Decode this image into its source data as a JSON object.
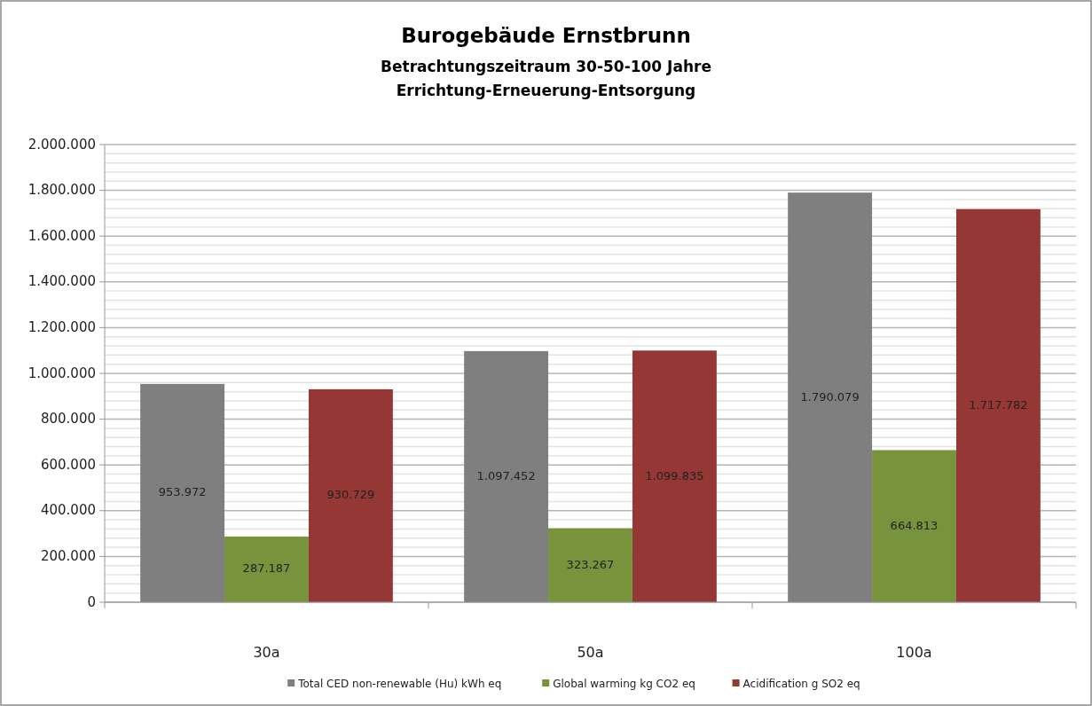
{
  "chart_data": {
    "type": "bar",
    "title": "Burogebäude Ernstbrunn",
    "subtitle": "Betrachtungszeitraum 30-50-100 Jahre\nErrichtung-Erneuerung-Entsorgung",
    "categories": [
      "30a",
      "50a",
      "100a"
    ],
    "series": [
      {
        "name": "Total CED non-renewable (Hu) kWh eq",
        "color": "#7f7f7f",
        "values": [
          953972,
          1097452,
          1790079
        ],
        "value_labels": [
          "953.972",
          "1.097.452",
          "1.790.079"
        ]
      },
      {
        "name": "Global warming kg CO2 eq",
        "color": "#77933c",
        "values": [
          287187,
          323267,
          664813
        ],
        "value_labels": [
          "287.187",
          "323.267",
          "664.813"
        ]
      },
      {
        "name": "Acidification g SO2 eq",
        "color": "#953735",
        "values": [
          930729,
          1099835,
          1717782
        ],
        "value_labels": [
          "930.729",
          "1.099.835",
          "1.717.782"
        ]
      }
    ],
    "ylim": [
      0,
      2000000
    ],
    "yticks": [
      {
        "value": 0,
        "label": "0"
      },
      {
        "value": 40000,
        "label": null
      },
      {
        "value": 80000,
        "label": null
      },
      {
        "value": 120000,
        "label": null
      },
      {
        "value": 160000,
        "label": null
      },
      {
        "value": 200000,
        "label": "200.000"
      },
      {
        "value": 240000,
        "label": null
      },
      {
        "value": 280000,
        "label": null
      },
      {
        "value": 320000,
        "label": null
      },
      {
        "value": 360000,
        "label": null
      },
      {
        "value": 400000,
        "label": "400.000"
      },
      {
        "value": 440000,
        "label": null
      },
      {
        "value": 480000,
        "label": null
      },
      {
        "value": 520000,
        "label": null
      },
      {
        "value": 560000,
        "label": null
      },
      {
        "value": 600000,
        "label": "600.000"
      },
      {
        "value": 640000,
        "label": null
      },
      {
        "value": 680000,
        "label": null
      },
      {
        "value": 720000,
        "label": null
      },
      {
        "value": 760000,
        "label": null
      },
      {
        "value": 800000,
        "label": "800.000"
      },
      {
        "value": 840000,
        "label": null
      },
      {
        "value": 880000,
        "label": null
      },
      {
        "value": 920000,
        "label": null
      },
      {
        "value": 960000,
        "label": null
      },
      {
        "value": 1000000,
        "label": "1.000.000"
      },
      {
        "value": 1040000,
        "label": null
      },
      {
        "value": 1080000,
        "label": null
      },
      {
        "value": 1120000,
        "label": null
      },
      {
        "value": 1160000,
        "label": null
      },
      {
        "value": 1200000,
        "label": "1.200.000"
      },
      {
        "value": 1240000,
        "label": null
      },
      {
        "value": 1280000,
        "label": null
      },
      {
        "value": 1320000,
        "label": null
      },
      {
        "value": 1360000,
        "label": null
      },
      {
        "value": 1400000,
        "label": "1.400.000"
      },
      {
        "value": 1440000,
        "label": null
      },
      {
        "value": 1480000,
        "label": null
      },
      {
        "value": 1520000,
        "label": null
      },
      {
        "value": 1560000,
        "label": null
      },
      {
        "value": 1600000,
        "label": "1.600.000"
      },
      {
        "value": 1640000,
        "label": null
      },
      {
        "value": 1680000,
        "label": null
      },
      {
        "value": 1720000,
        "label": null
      },
      {
        "value": 1760000,
        "label": null
      },
      {
        "value": 1800000,
        "label": "1.800.000"
      },
      {
        "value": 1840000,
        "label": null
      },
      {
        "value": 1880000,
        "label": null
      },
      {
        "value": 1920000,
        "label": null
      },
      {
        "value": 1960000,
        "label": null
      },
      {
        "value": 2000000,
        "label": "2.000.000"
      }
    ],
    "grid": "y",
    "legend": "bottom"
  }
}
